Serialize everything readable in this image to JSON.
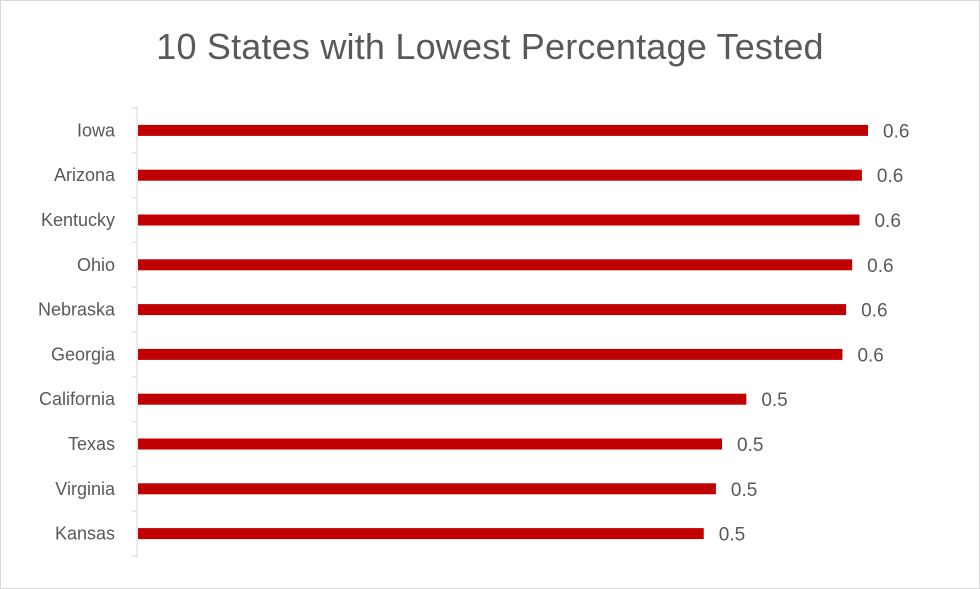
{
  "chart_data": {
    "type": "bar",
    "orientation": "horizontal",
    "title": "10 States with Lowest Percentage Tested",
    "xlabel": "",
    "ylabel": "",
    "categories": [
      "Iowa",
      "Arizona",
      "Kentucky",
      "Ohio",
      "Nebraska",
      "Georgia",
      "California",
      "Texas",
      "Virginia",
      "Kansas"
    ],
    "values": [
      0.6,
      0.6,
      0.6,
      0.6,
      0.6,
      0.6,
      0.5,
      0.5,
      0.5,
      0.5
    ],
    "display_values": [
      0.6,
      0.595,
      0.593,
      0.587,
      0.582,
      0.579,
      0.5,
      0.48,
      0.475,
      0.465
    ],
    "data_labels": [
      "0.6",
      "0.6",
      "0.6",
      "0.6",
      "0.6",
      "0.6",
      "0.5",
      "0.5",
      "0.5",
      "0.5"
    ],
    "bar_color": "#c00000",
    "grid": false,
    "legend": "none"
  }
}
